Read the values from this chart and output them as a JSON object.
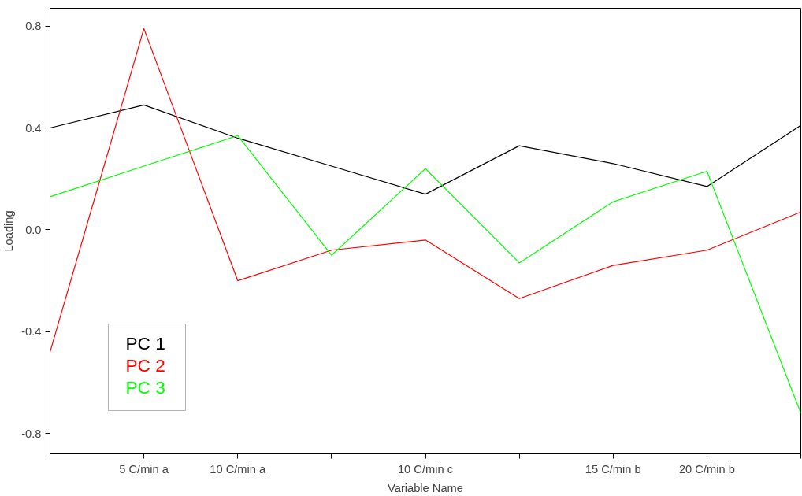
{
  "chart_data": {
    "type": "line",
    "xlabel": "Variable Name",
    "ylabel": "Loading",
    "categories": [
      null,
      "5 C/min a",
      "10 C/min a",
      null,
      "10 C/min c",
      null,
      "15 C/min b",
      "20 C/min b",
      null
    ],
    "ylim": [
      -0.88,
      0.87
    ],
    "yticks": [
      -0.8,
      -0.4,
      {
        "value": 0,
        "label": "0.0"
      },
      0.4,
      0.8
    ],
    "series": [
      {
        "name": "PC 1",
        "color": "#000000",
        "values": [
          0.4,
          0.49,
          0.36,
          0.25,
          0.14,
          0.33,
          0.26,
          0.17,
          0.41
        ]
      },
      {
        "name": "PC 2",
        "color": "#ff0000",
        "values": [
          -0.48,
          0.79,
          -0.2,
          -0.08,
          -0.04,
          -0.27,
          -0.14,
          -0.08,
          0.07
        ]
      },
      {
        "name": "PC 3",
        "color": "#00ff00",
        "values": [
          0.13,
          0.25,
          0.37,
          -0.1,
          0.24,
          -0.13,
          0.11,
          0.23,
          -0.72
        ]
      }
    ],
    "grid": false,
    "legend": "bottom left",
    "marker": "none",
    "line_style": "solid"
  }
}
